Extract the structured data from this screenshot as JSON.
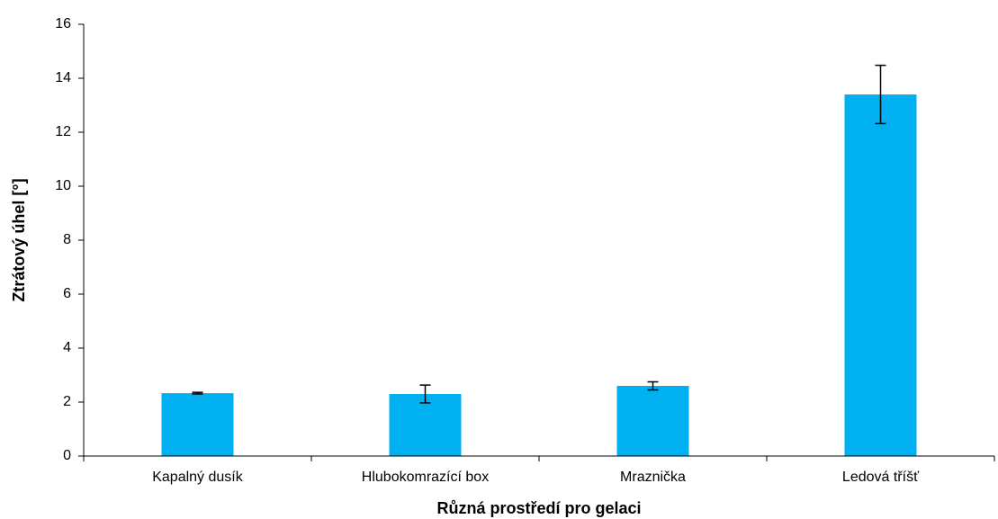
{
  "chart_data": {
    "type": "bar",
    "categories": [
      "Kapalný dusík",
      "Hlubokomrazící box",
      "Mraznička",
      "Ledová tříšť"
    ],
    "values": [
      2.33,
      2.3,
      2.6,
      13.4
    ],
    "errors": [
      0.03,
      0.33,
      0.15,
      1.08
    ],
    "color": "#00b0f0",
    "ylim": [
      0,
      16
    ],
    "yticks": [
      0,
      2,
      4,
      6,
      8,
      10,
      12,
      14,
      16
    ],
    "x_label": "Různá prostředí pro gelaci",
    "y_label": "Ztrátový úhel [°]",
    "grid": false
  }
}
